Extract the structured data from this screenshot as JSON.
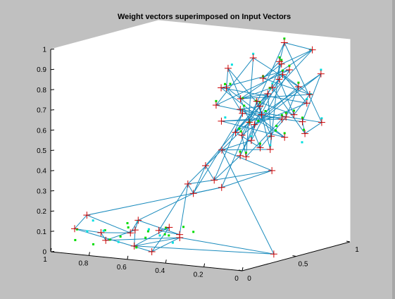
{
  "window": {
    "background": "#c0c0c0"
  },
  "chart_data": {
    "type": "scatter",
    "title": "Weight vectors superimposed on Input Vectors",
    "xlabel": "",
    "ylabel": "",
    "zlabel": "",
    "x_axis": {
      "range": [
        0,
        1
      ],
      "ticks": [
        "1",
        "0.8",
        "0.6",
        "0.4",
        "0.2",
        "0"
      ]
    },
    "y_axis": {
      "range": [
        0,
        1
      ],
      "ticks": [
        "0",
        "0.5",
        "1"
      ]
    },
    "z_axis": {
      "range": [
        0,
        1
      ],
      "ticks": [
        "0",
        "0.1",
        "0.2",
        "0.3",
        "0.4",
        "0.5",
        "0.6",
        "0.7",
        "0.8",
        "0.9",
        "1"
      ]
    },
    "grid": false,
    "colors": {
      "input_vectors_green": "#00dd00",
      "input_vectors_cyan": "#00e0e0",
      "weight_vectors": "#cc0000",
      "weight_links": "#1a8bbd",
      "box": "#ffffff",
      "axis": "#000000",
      "plot_background": "#ffffff"
    },
    "series": [
      {
        "kind": "input_vectors",
        "marker": "dot",
        "points": [
          [
            0.9,
            0.05,
            0.06
          ],
          [
            0.93,
            0.12,
            0.1
          ],
          [
            0.88,
            0.18,
            0.14
          ],
          [
            0.8,
            0.04,
            0.05
          ],
          [
            0.84,
            0.22,
            0.09
          ],
          [
            0.78,
            0.1,
            0.11
          ],
          [
            0.72,
            0.15,
            0.08
          ],
          [
            0.74,
            0.25,
            0.13
          ],
          [
            0.68,
            0.06,
            0.07
          ],
          [
            0.66,
            0.3,
            0.09
          ],
          [
            0.62,
            0.12,
            0.04
          ],
          [
            0.6,
            0.2,
            0.12
          ],
          [
            0.58,
            0.35,
            0.07
          ],
          [
            0.55,
            0.08,
            0.1
          ],
          [
            0.52,
            0.28,
            0.05
          ],
          [
            0.5,
            0.18,
            0.14
          ],
          [
            0.86,
            0.3,
            0.03
          ],
          [
            0.76,
            0.38,
            0.12
          ],
          [
            0.64,
            0.42,
            0.06
          ],
          [
            0.56,
            0.45,
            0.1
          ],
          [
            0.7,
            0.48,
            0.04
          ],
          [
            0.82,
            0.4,
            0.08
          ],
          [
            0.48,
            0.4,
            0.09
          ],
          [
            0.95,
            0.25,
            0.07
          ],
          [
            0.3,
            0.6,
            0.62
          ],
          [
            0.25,
            0.7,
            0.78
          ],
          [
            0.22,
            0.65,
            0.55
          ],
          [
            0.35,
            0.75,
            0.7
          ],
          [
            0.18,
            0.8,
            0.66
          ],
          [
            0.28,
            0.85,
            0.82
          ],
          [
            0.32,
            0.55,
            0.48
          ],
          [
            0.2,
            0.72,
            0.92
          ],
          [
            0.15,
            0.9,
            0.95
          ],
          [
            0.26,
            0.78,
            0.58
          ],
          [
            0.38,
            0.68,
            0.72
          ],
          [
            0.12,
            0.85,
            0.74
          ],
          [
            0.24,
            0.62,
            0.85
          ],
          [
            0.3,
            0.88,
            0.9
          ],
          [
            0.18,
            0.58,
            0.52
          ],
          [
            0.34,
            0.82,
            0.64
          ],
          [
            0.4,
            0.6,
            0.8
          ],
          [
            0.28,
            0.5,
            0.7
          ],
          [
            0.22,
            0.95,
            0.6
          ],
          [
            0.1,
            0.75,
            0.58
          ],
          [
            0.36,
            0.92,
            0.76
          ],
          [
            0.16,
            0.66,
            0.88
          ],
          [
            0.42,
            0.72,
            0.56
          ],
          [
            0.14,
            0.98,
            0.84
          ],
          [
            0.26,
            0.45,
            0.6
          ],
          [
            0.32,
            0.96,
            0.98
          ],
          [
            0.08,
            0.88,
            0.62
          ],
          [
            0.44,
            0.8,
            0.66
          ],
          [
            0.2,
            0.52,
            0.74
          ],
          [
            0.38,
            0.58,
            0.9
          ],
          [
            0.3,
            0.7,
            0.5
          ],
          [
            0.12,
            0.62,
            0.68
          ],
          [
            0.46,
            0.66,
            0.62
          ],
          [
            0.24,
            0.82,
            0.54
          ],
          [
            0.36,
            0.48,
            0.82
          ],
          [
            0.18,
            0.92,
            0.7
          ],
          [
            0.4,
            0.86,
            0.58
          ],
          [
            0.1,
            0.7,
            0.82
          ],
          [
            0.28,
            0.6,
            0.96
          ],
          [
            0.34,
            0.64,
            0.46
          ],
          [
            0.22,
            0.76,
            0.64
          ],
          [
            0.16,
            0.84,
            0.5
          ],
          [
            0.44,
            0.54,
            0.72
          ],
          [
            0.26,
            0.9,
            0.86
          ],
          [
            0.38,
            0.76,
            0.52
          ],
          [
            0.14,
            0.56,
            0.6
          ]
        ]
      },
      {
        "kind": "weight_vectors",
        "marker": "plus",
        "points": [
          [
            0.92,
            0.08,
            0.11
          ],
          [
            0.85,
            0.2,
            0.08
          ],
          [
            0.78,
            0.12,
            0.06
          ],
          [
            0.7,
            0.25,
            0.1
          ],
          [
            0.62,
            0.1,
            0.05
          ],
          [
            0.55,
            0.3,
            0.12
          ],
          [
            0.5,
            0.05,
            0.04
          ],
          [
            0.66,
            0.4,
            0.08
          ],
          [
            0.58,
            0.45,
            0.06
          ],
          [
            0.74,
            0.35,
            0.13
          ],
          [
            0.82,
            0.42,
            0.05
          ],
          [
            0.45,
            0.22,
            0.09
          ],
          [
            0.98,
            0.3,
            0.14
          ],
          [
            0.52,
            0.42,
            0.32
          ],
          [
            0.48,
            0.4,
            0.28
          ],
          [
            0.4,
            0.52,
            0.3
          ],
          [
            0.3,
            0.6,
            0.62
          ],
          [
            0.26,
            0.7,
            0.75
          ],
          [
            0.22,
            0.66,
            0.55
          ],
          [
            0.34,
            0.74,
            0.7
          ],
          [
            0.18,
            0.8,
            0.64
          ],
          [
            0.28,
            0.84,
            0.8
          ],
          [
            0.32,
            0.55,
            0.46
          ],
          [
            0.2,
            0.72,
            0.9
          ],
          [
            0.14,
            0.9,
            0.95
          ],
          [
            0.38,
            0.66,
            0.72
          ],
          [
            0.12,
            0.84,
            0.74
          ],
          [
            0.24,
            0.62,
            0.84
          ],
          [
            0.3,
            0.88,
            0.88
          ],
          [
            0.18,
            0.58,
            0.5
          ],
          [
            0.36,
            0.82,
            0.62
          ],
          [
            0.42,
            0.6,
            0.78
          ],
          [
            0.28,
            0.5,
            0.68
          ],
          [
            0.22,
            0.95,
            0.58
          ],
          [
            0.1,
            0.76,
            0.56
          ],
          [
            0.36,
            0.92,
            0.74
          ],
          [
            0.16,
            0.66,
            0.86
          ],
          [
            0.44,
            0.72,
            0.54
          ],
          [
            0.14,
            0.98,
            0.82
          ],
          [
            0.26,
            0.46,
            0.58
          ],
          [
            0.32,
            0.96,
            0.96
          ],
          [
            0.08,
            0.88,
            0.6
          ],
          [
            0.46,
            0.8,
            0.64
          ],
          [
            0.2,
            0.52,
            0.72
          ],
          [
            0.4,
            0.58,
            0.88
          ],
          [
            0.3,
            0.7,
            0.48
          ],
          [
            0.12,
            0.62,
            0.66
          ],
          [
            0.48,
            0.66,
            0.6
          ],
          [
            0.24,
            0.82,
            0.52
          ],
          [
            0.38,
            0.48,
            0.8
          ],
          [
            0.18,
            0.92,
            0.68
          ],
          [
            0.42,
            0.86,
            0.56
          ],
          [
            0.1,
            0.7,
            0.8
          ],
          [
            0.28,
            0.6,
            0.94
          ],
          [
            0.34,
            0.64,
            0.44
          ],
          [
            0.22,
            0.76,
            0.62
          ],
          [
            0.06,
            0.4,
            0.02
          ],
          [
            0.44,
            0.54,
            0.7
          ],
          [
            0.26,
            0.9,
            0.84
          ],
          [
            0.38,
            0.76,
            0.5
          ],
          [
            0.5,
            0.7,
            0.45
          ],
          [
            0.16,
            0.56,
            0.4
          ],
          [
            0.36,
            0.38,
            0.36
          ],
          [
            0.54,
            0.62,
            0.38
          ]
        ]
      }
    ],
    "links": [
      [
        0,
        1
      ],
      [
        1,
        2
      ],
      [
        2,
        3
      ],
      [
        3,
        4
      ],
      [
        4,
        5
      ],
      [
        5,
        6
      ],
      [
        6,
        0
      ],
      [
        5,
        7
      ],
      [
        7,
        8
      ],
      [
        8,
        9
      ],
      [
        9,
        10
      ],
      [
        10,
        1
      ],
      [
        2,
        11
      ],
      [
        11,
        4
      ],
      [
        0,
        12
      ],
      [
        12,
        10
      ],
      [
        7,
        13
      ],
      [
        13,
        14
      ],
      [
        14,
        15
      ],
      [
        8,
        13
      ],
      [
        9,
        14
      ],
      [
        12,
        15
      ],
      [
        6,
        11
      ],
      [
        3,
        9
      ],
      [
        15,
        16
      ],
      [
        13,
        16
      ],
      [
        14,
        32
      ],
      [
        11,
        56
      ],
      [
        56,
        4
      ],
      [
        16,
        17
      ],
      [
        17,
        18
      ],
      [
        18,
        19
      ],
      [
        19,
        20
      ],
      [
        20,
        21
      ],
      [
        21,
        22
      ],
      [
        22,
        23
      ],
      [
        23,
        24
      ],
      [
        24,
        25
      ],
      [
        25,
        26
      ],
      [
        26,
        27
      ],
      [
        27,
        28
      ],
      [
        28,
        29
      ],
      [
        29,
        30
      ],
      [
        30,
        31
      ],
      [
        31,
        32
      ],
      [
        32,
        33
      ],
      [
        33,
        34
      ],
      [
        34,
        35
      ],
      [
        35,
        36
      ],
      [
        36,
        37
      ],
      [
        37,
        38
      ],
      [
        38,
        39
      ],
      [
        39,
        40
      ],
      [
        40,
        41
      ],
      [
        41,
        42
      ],
      [
        42,
        43
      ],
      [
        43,
        44
      ],
      [
        44,
        45
      ],
      [
        45,
        46
      ],
      [
        46,
        47
      ],
      [
        47,
        48
      ],
      [
        48,
        49
      ],
      [
        49,
        50
      ],
      [
        50,
        51
      ],
      [
        51,
        52
      ],
      [
        52,
        53
      ],
      [
        53,
        54
      ],
      [
        54,
        55
      ],
      [
        55,
        57
      ],
      [
        57,
        58
      ],
      [
        58,
        59
      ],
      [
        59,
        60
      ],
      [
        60,
        61
      ],
      [
        61,
        62
      ],
      [
        62,
        63
      ],
      [
        63,
        17
      ],
      [
        16,
        19
      ],
      [
        18,
        29
      ],
      [
        20,
        26
      ],
      [
        21,
        28
      ],
      [
        23,
        27
      ],
      [
        24,
        40
      ],
      [
        25,
        35
      ],
      [
        30,
        43
      ],
      [
        31,
        44
      ],
      [
        33,
        38
      ],
      [
        34,
        41
      ],
      [
        36,
        50
      ],
      [
        37,
        45
      ],
      [
        39,
        54
      ],
      [
        42,
        48
      ],
      [
        46,
        52
      ],
      [
        47,
        55
      ],
      [
        49,
        58
      ],
      [
        51,
        59
      ],
      [
        53,
        57
      ],
      [
        56,
        60
      ],
      [
        22,
        62
      ],
      [
        19,
        30
      ],
      [
        17,
        25
      ],
      [
        60,
        29
      ],
      [
        62,
        32
      ],
      [
        15,
        61
      ],
      [
        14,
        63
      ],
      [
        13,
        62
      ],
      [
        28,
        40
      ],
      [
        24,
        37
      ],
      [
        26,
        36
      ]
    ]
  }
}
